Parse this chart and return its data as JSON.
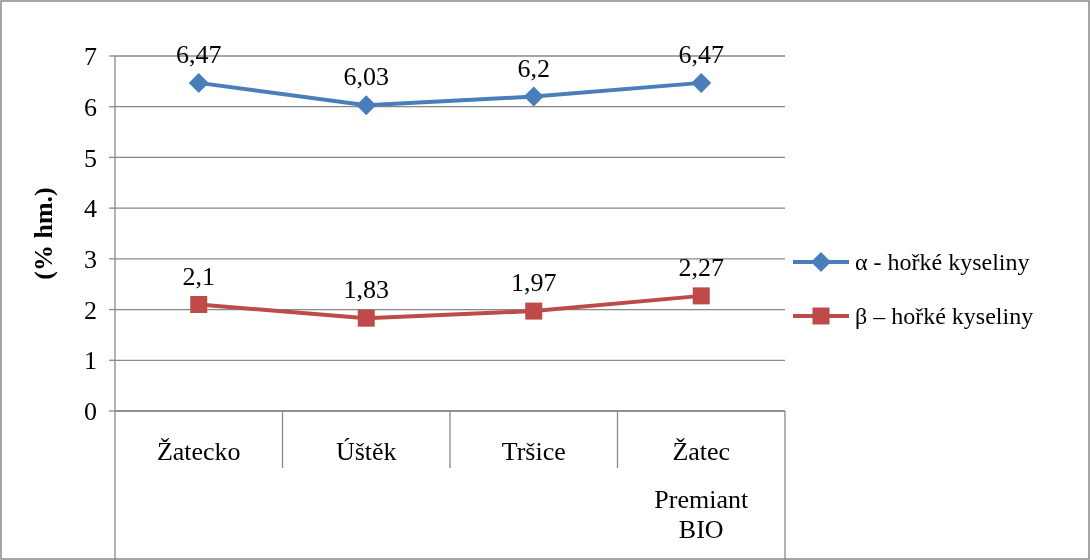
{
  "chart_data": {
    "type": "line",
    "ylabel": "(% hm.)",
    "categories": [
      "Žatecko",
      "Úštěk",
      "Tršice",
      "Žatec Premiant BIO"
    ],
    "series": [
      {
        "name": "α - hořké kyseliny",
        "color": "#4a7ebb",
        "marker": "diamond",
        "values": [
          6.47,
          6.03,
          6.2,
          6.47
        ],
        "value_labels": [
          "6,47",
          "6,03",
          "6,2",
          "6,47"
        ]
      },
      {
        "name": "β – hořké kyseliny",
        "color": "#be4b48",
        "marker": "square",
        "values": [
          2.1,
          1.83,
          1.97,
          2.27
        ],
        "value_labels": [
          "2,1",
          "1,83",
          "1,97",
          "2,27"
        ]
      }
    ],
    "ylim": [
      0,
      7
    ],
    "yticks": [
      0,
      1,
      2,
      3,
      4,
      5,
      6,
      7
    ],
    "grid": "y",
    "legend": "right",
    "line_style": "solid"
  }
}
